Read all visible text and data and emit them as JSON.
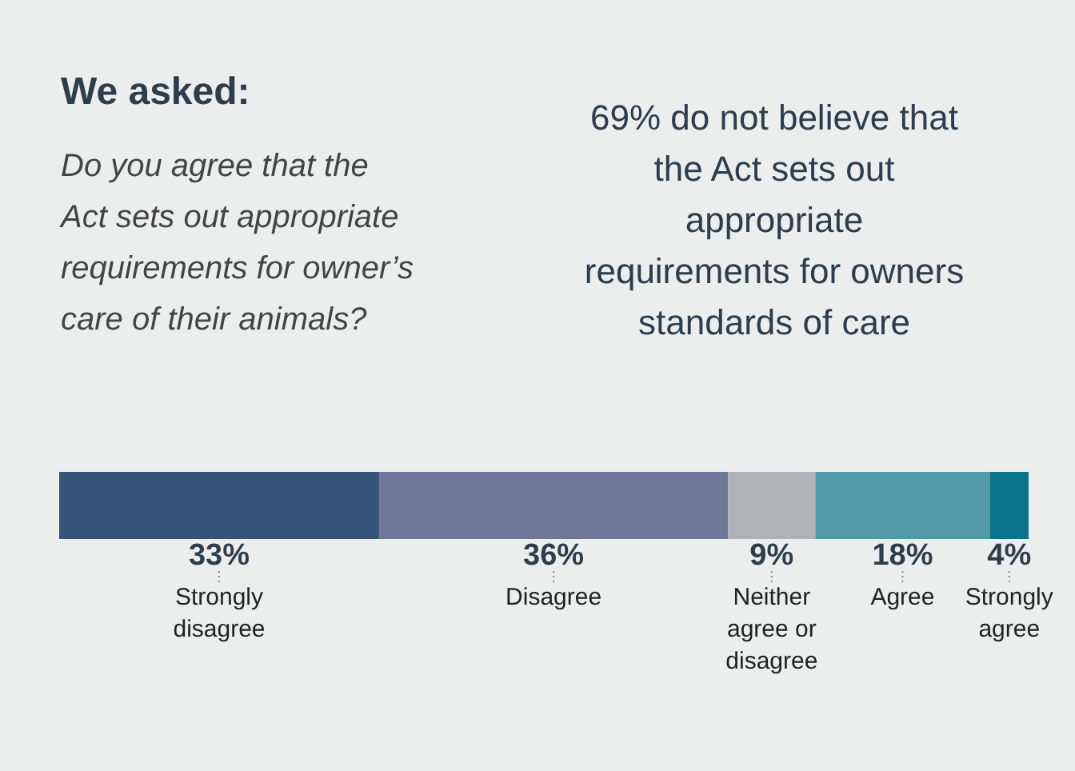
{
  "chart_data": {
    "type": "bar",
    "stacked": true,
    "orientation": "horizontal",
    "title": "We asked:",
    "subtitle": "Do you agree that the Act sets out appropriate requirements for owner’s care of their animals?",
    "annotations": [
      "69% do not believe that the Act sets out appropriate requirements for owners standards of care"
    ],
    "categories": [
      null
    ],
    "series": [
      {
        "name": "Strongly disagree",
        "color": "#36537a",
        "values": [
          33
        ],
        "value_labels": [
          "33%"
        ]
      },
      {
        "name": "Disagree",
        "color": "#6f7798",
        "values": [
          36
        ],
        "value_labels": [
          "36%"
        ]
      },
      {
        "name": "Neither agree or disagree",
        "color": "#b0b3b6",
        "values": [
          9
        ],
        "value_labels": [
          "9%"
        ]
      },
      {
        "name": "Agree",
        "color": "#5299a8",
        "values": [
          18
        ],
        "value_labels": [
          "18%"
        ]
      },
      {
        "name": "Strongly agree",
        "color": "#087489",
        "values": [
          4
        ],
        "value_labels": [
          "4%"
        ]
      }
    ]
  }
}
